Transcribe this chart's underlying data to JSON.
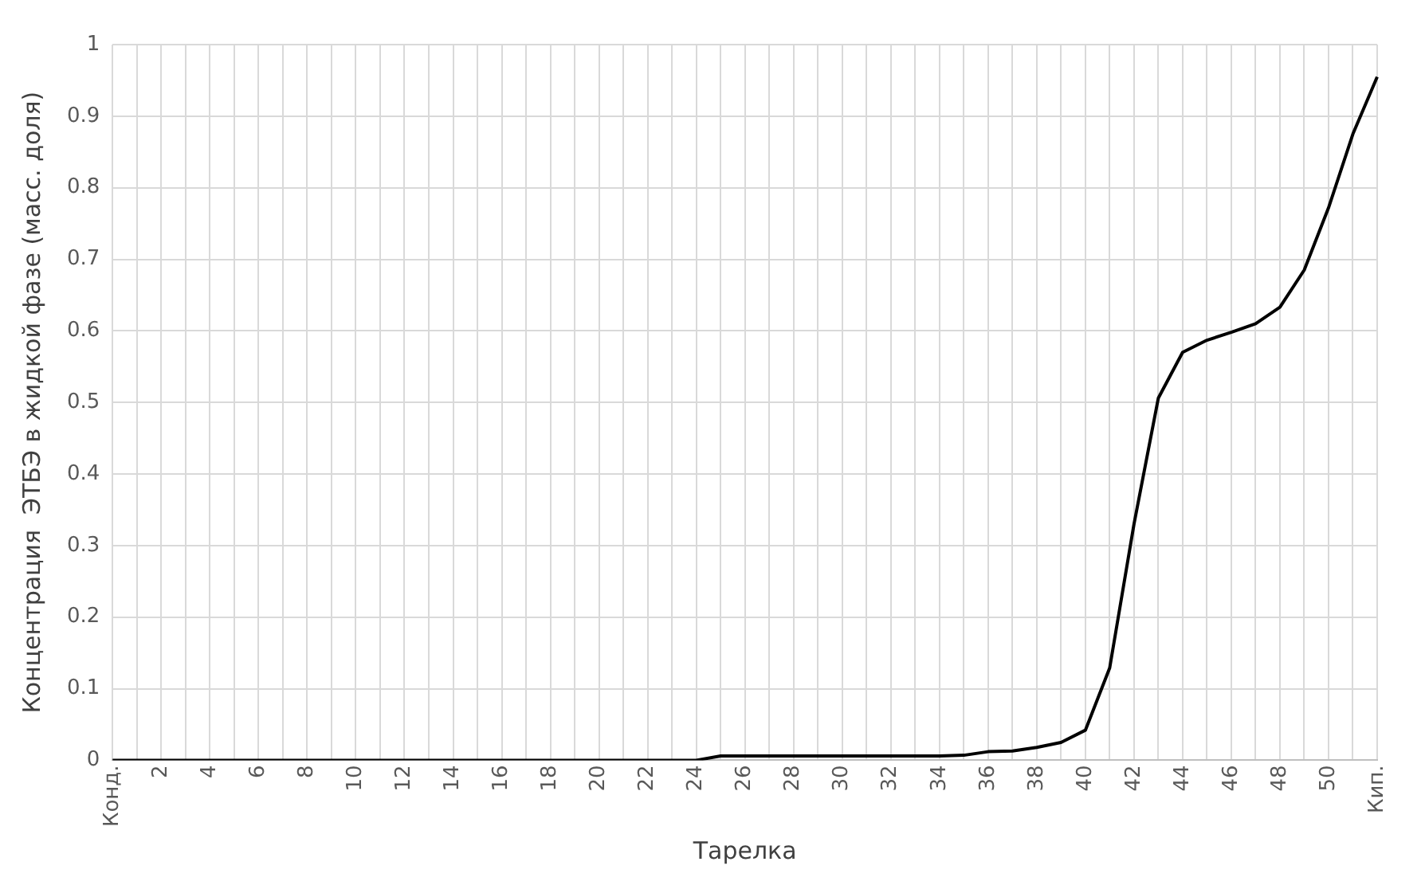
{
  "chart_data": {
    "type": "line",
    "xlabel": "Тарелка",
    "ylabel": "Концентрация  ЭТБЭ в жидкой фазе (масс. доля)",
    "categories": [
      "Конд.",
      null,
      "2",
      null,
      "4",
      null,
      "6",
      null,
      "8",
      null,
      "10",
      null,
      "12",
      null,
      "14",
      null,
      "16",
      null,
      "18",
      null,
      "20",
      null,
      "22",
      null,
      "24",
      null,
      "26",
      null,
      "28",
      null,
      "30",
      null,
      "32",
      null,
      "34",
      null,
      "36",
      null,
      "38",
      null,
      "40",
      null,
      "42",
      null,
      "44",
      null,
      "46",
      null,
      "48",
      null,
      "50",
      null,
      "Кип."
    ],
    "series": [
      {
        "color": "#000000",
        "values": [
          0,
          0,
          0,
          0,
          0,
          0,
          0,
          0,
          0,
          0,
          0,
          0,
          0,
          0,
          0,
          0,
          0,
          0,
          0,
          0,
          0,
          0,
          0,
          0,
          0,
          0.006,
          0.006,
          0.006,
          0.006,
          0.006,
          0.006,
          0.006,
          0.006,
          0.006,
          0.006,
          0.007,
          0.012,
          0.013,
          0.018,
          0.025,
          0.042,
          0.129,
          0.33,
          0.506,
          0.57,
          0.587,
          0.598,
          0.61,
          0.633,
          0.685,
          0.772,
          0.875,
          0.955
        ]
      }
    ],
    "ylim": [
      0,
      1
    ],
    "yticks": [
      0,
      0.1,
      0.2,
      0.3,
      0.4,
      0.5,
      0.6,
      0.7,
      0.8,
      0.9,
      1
    ],
    "grid": true,
    "legend": false,
    "marker": "none",
    "line_style": "solid"
  }
}
